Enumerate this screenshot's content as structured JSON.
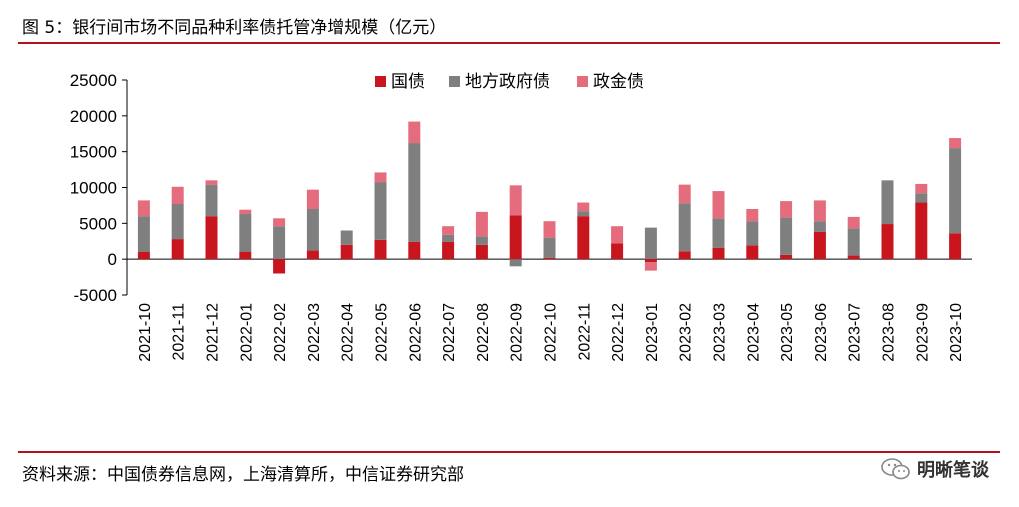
{
  "header": {
    "title": "图 5：银行间市场不同品种利率债托管净增规模（亿元）"
  },
  "footer": {
    "source": "资料来源：中国债券信息网，上海清算所，中信证券研究部",
    "brand": "明晰笔谈"
  },
  "colors": {
    "rule": "#b3121b",
    "guozhai": "#c9151e",
    "difang": "#7f7f7f",
    "zhengjin": "#e46c7d"
  },
  "chart_data": {
    "type": "bar",
    "stacked": true,
    "title": "",
    "xlabel": "",
    "ylabel": "",
    "ylim": [
      -5000,
      25000
    ],
    "yticks": [
      -5000,
      0,
      5000,
      10000,
      15000,
      20000,
      25000
    ],
    "ytick_labels": [
      "-5000",
      "0",
      "5000",
      "10000",
      "15000",
      "20000",
      "25000"
    ],
    "grid": false,
    "legend_position": "top-center",
    "categories": [
      "2021-10",
      "2021-11",
      "2021-12",
      "2022-01",
      "2022-02",
      "2022-03",
      "2022-04",
      "2022-05",
      "2022-06",
      "2022-07",
      "2022-08",
      "2022-09",
      "2022-10",
      "2022-11",
      "2022-12",
      "2023-01",
      "2023-02",
      "2023-03",
      "2023-04",
      "2023-05",
      "2023-06",
      "2023-07",
      "2023-08",
      "2023-09",
      "2023-10"
    ],
    "series": [
      {
        "name": "国债",
        "color": "#c9151e",
        "values": [
          1000,
          2800,
          6000,
          1000,
          -2000,
          1200,
          2000,
          2700,
          2400,
          2400,
          2000,
          6100,
          200,
          6000,
          2200,
          -400,
          1100,
          1600,
          1900,
          600,
          3800,
          500,
          4900,
          7900,
          3600
        ]
      },
      {
        "name": "地方政府债",
        "color": "#7f7f7f",
        "values": [
          5000,
          4900,
          4400,
          5300,
          4600,
          5800,
          2000,
          8000,
          13800,
          1000,
          1200,
          -1000,
          2800,
          700,
          0,
          4400,
          6700,
          4100,
          3400,
          5200,
          1500,
          3800,
          6100,
          1300,
          11900
        ]
      },
      {
        "name": "政金债",
        "color": "#e46c7d",
        "values": [
          2200,
          2400,
          600,
          600,
          1100,
          2700,
          0,
          1400,
          3000,
          1200,
          3400,
          4200,
          2300,
          1200,
          2400,
          -1200,
          2600,
          3800,
          1700,
          2300,
          2900,
          1600,
          0,
          1300,
          1400
        ]
      }
    ]
  }
}
